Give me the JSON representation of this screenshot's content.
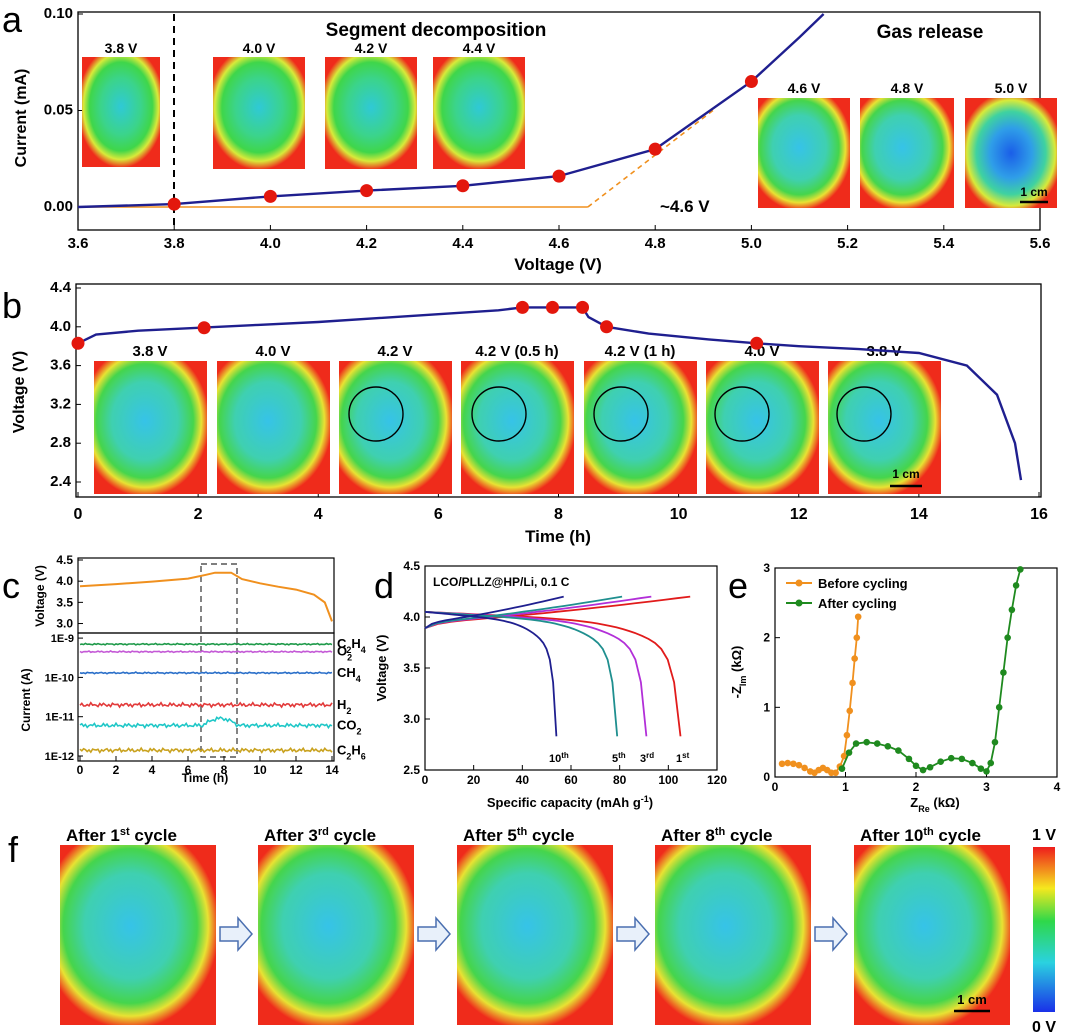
{
  "colors": {
    "curve_dark": "#1f1f8f",
    "marker": "#e3170d",
    "orange": "#f0901e",
    "green_series": "#1f8a1f",
    "map_red": "#ee2a1b",
    "map_green": "#33d14a",
    "map_cyan": "#2ad4c8"
  },
  "panel_letters": [
    "a",
    "b",
    "c",
    "d",
    "e",
    "f"
  ],
  "chart_data": [
    {
      "id": "a",
      "type": "line",
      "titles": {
        "left": "Segment decomposition",
        "right": "Gas release"
      },
      "xlabel": "Voltage (V)",
      "ylabel": "Current (mA)",
      "xlim": [
        3.6,
        5.6
      ],
      "ylim": [
        0,
        0.1
      ],
      "xticks": [
        "3.6",
        "3.8",
        "4.0",
        "4.2",
        "4.4",
        "4.6",
        "4.8",
        "5.0",
        "5.2",
        "5.4",
        "5.6"
      ],
      "yticks": [
        "0.00",
        "0.05",
        "0.10"
      ],
      "onset_label": "~4.6 V",
      "scale_bar": "1 cm",
      "x": [
        3.6,
        3.8,
        4.0,
        4.2,
        4.4,
        4.6,
        4.8,
        5.0,
        5.1,
        5.15
      ],
      "y": [
        0.0,
        0.0015,
        0.0055,
        0.0085,
        0.011,
        0.016,
        0.03,
        0.065,
        0.088,
        0.1
      ],
      "markers_x": [
        3.8,
        4.0,
        4.2,
        4.4,
        4.6,
        4.8,
        5.0
      ],
      "markers_y": [
        0.0015,
        0.0055,
        0.0085,
        0.011,
        0.016,
        0.03,
        0.065
      ],
      "image_labels": [
        "3.8 V",
        "4.0 V",
        "4.2 V",
        "4.4 V",
        "4.6 V",
        "4.8 V",
        "5.0 V"
      ]
    },
    {
      "id": "b",
      "type": "line",
      "xlabel": "Time (h)",
      "ylabel": "Voltage (V)",
      "xlim": [
        0,
        16
      ],
      "ylim": [
        2.4,
        4.4
      ],
      "xticks": [
        "0",
        "2",
        "4",
        "6",
        "8",
        "10",
        "12",
        "14",
        "16"
      ],
      "yticks": [
        "2.4",
        "2.8",
        "3.2",
        "3.6",
        "4.0",
        "4.4"
      ],
      "scale_bar": "1 cm",
      "x": [
        0,
        0.3,
        1,
        2,
        3,
        4,
        5,
        6,
        7,
        7.4,
        7.9,
        8.4,
        8.5,
        8.8,
        9.5,
        10.5,
        11.3,
        12,
        13,
        14,
        14.8,
        15.3,
        15.6,
        15.7
      ],
      "y": [
        3.83,
        3.92,
        3.96,
        3.99,
        4.02,
        4.05,
        4.09,
        4.13,
        4.17,
        4.2,
        4.2,
        4.2,
        4.1,
        4.0,
        3.93,
        3.87,
        3.83,
        3.8,
        3.77,
        3.73,
        3.6,
        3.3,
        2.8,
        2.42
      ],
      "markers_x": [
        0,
        2.1,
        7.4,
        7.9,
        8.4,
        8.8,
        11.3
      ],
      "markers_y": [
        3.83,
        3.99,
        4.2,
        4.2,
        4.2,
        4.0,
        3.83
      ],
      "image_labels": [
        "3.8 V",
        "4.0 V",
        "4.2 V",
        "4.2 V (0.5 h)",
        "4.2 V (1 h)",
        "4.0 V",
        "3.8 V"
      ]
    },
    {
      "id": "c",
      "type": "line",
      "xlabel": "Time (h)",
      "ylabel_top": "Voltage (V)",
      "ylabel_bottom": "Current (A)",
      "xlim": [
        0,
        14
      ],
      "xticks": [
        "0",
        "2",
        "4",
        "6",
        "8",
        "10",
        "12",
        "14"
      ],
      "yticks_top": [
        "3.0",
        "3.5",
        "4.0",
        "4.5"
      ],
      "yticks_bottom": [
        "1E-12",
        "1E-11",
        "1E-10",
        "1E-9"
      ],
      "voltage_x": [
        0,
        2,
        4,
        6,
        7,
        7.5,
        8.4,
        9,
        10,
        11,
        12,
        13,
        13.6,
        14
      ],
      "voltage_y": [
        3.88,
        3.93,
        3.99,
        4.06,
        4.15,
        4.2,
        4.2,
        4.05,
        3.95,
        3.87,
        3.8,
        3.68,
        3.5,
        3.05
      ],
      "series": [
        {
          "name": "C2H4",
          "level": "7E-10"
        },
        {
          "name": "O2",
          "level": "4.5E-10"
        },
        {
          "name": "CH4",
          "level": "1.3E-10"
        },
        {
          "name": "H2",
          "level": "2E-11"
        },
        {
          "name": "CO2",
          "level": "6E-12"
        },
        {
          "name": "C2H6",
          "level": "1.4E-12"
        }
      ]
    },
    {
      "id": "d",
      "type": "line",
      "annotation": "LCO/PLLZ@HP/Li, 0.1 C",
      "xlabel": "Specific capacity (mAh g-1)",
      "ylabel": "Voltage (V)",
      "xlim": [
        0,
        120
      ],
      "ylim": [
        2.5,
        4.5
      ],
      "xticks": [
        "0",
        "20",
        "40",
        "60",
        "80",
        "100",
        "120"
      ],
      "yticks": [
        "2.5",
        "3.0",
        "3.5",
        "4.0",
        "4.5"
      ],
      "series": [
        {
          "name": "1st",
          "charge_end": 109,
          "discharge_end": 105
        },
        {
          "name": "3rd",
          "charge_end": 93,
          "discharge_end": 91
        },
        {
          "name": "5th",
          "charge_end": 81,
          "discharge_end": 79
        },
        {
          "name": "10th",
          "charge_end": 57,
          "discharge_end": 54
        }
      ]
    },
    {
      "id": "e",
      "type": "scatter",
      "xlabel": "ZRe (kΩ)",
      "ylabel": "-ZIm (kΩ)",
      "xlim": [
        0,
        4
      ],
      "ylim": [
        0,
        3
      ],
      "xticks": [
        "0",
        "1",
        "2",
        "3",
        "4"
      ],
      "yticks": [
        "0",
        "1",
        "2",
        "3"
      ],
      "series": [
        {
          "name": "Before cycling",
          "x": [
            0.1,
            0.18,
            0.26,
            0.34,
            0.42,
            0.5,
            0.56,
            0.62,
            0.68,
            0.74,
            0.8,
            0.86,
            0.92,
            0.98,
            1.02,
            1.06,
            1.1,
            1.13,
            1.16,
            1.18
          ],
          "y": [
            0.19,
            0.2,
            0.19,
            0.17,
            0.13,
            0.08,
            0.06,
            0.1,
            0.13,
            0.1,
            0.06,
            0.06,
            0.15,
            0.3,
            0.6,
            0.95,
            1.35,
            1.7,
            2.0,
            2.3
          ]
        },
        {
          "name": "After cycling",
          "x": [
            0.95,
            1.05,
            1.15,
            1.3,
            1.45,
            1.6,
            1.75,
            1.9,
            2.0,
            2.1,
            2.2,
            2.35,
            2.5,
            2.65,
            2.8,
            2.92,
            3.0,
            3.06,
            3.12,
            3.18,
            3.24,
            3.3,
            3.36,
            3.42,
            3.48
          ],
          "y": [
            0.12,
            0.35,
            0.48,
            0.5,
            0.48,
            0.44,
            0.38,
            0.26,
            0.16,
            0.1,
            0.14,
            0.22,
            0.27,
            0.26,
            0.2,
            0.12,
            0.08,
            0.2,
            0.5,
            1.0,
            1.5,
            2.0,
            2.4,
            2.75,
            2.98
          ]
        }
      ]
    }
  ],
  "panel_f": {
    "labels": [
      "After 1st cycle",
      "After 3rd cycle",
      "After 5th cycle",
      "After 8th cycle",
      "After 10th cycle"
    ],
    "colorbar_max": "1 V",
    "colorbar_min": "0 V",
    "scale_bar": "1 cm"
  }
}
